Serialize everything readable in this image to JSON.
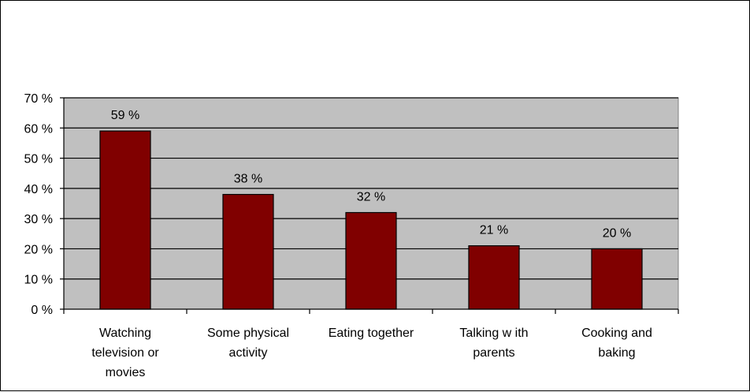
{
  "chart_data": {
    "type": "bar",
    "categories": [
      [
        "Watching",
        "television or",
        "movies"
      ],
      [
        "Some physical",
        "activity"
      ],
      [
        "Eating together"
      ],
      [
        "Talking w ith",
        "parents"
      ],
      [
        "Cooking and",
        "baking"
      ]
    ],
    "values": [
      59,
      38,
      32,
      21,
      20
    ],
    "value_labels": [
      "59 %",
      "38 %",
      "32 %",
      "21 %",
      "20 %"
    ],
    "y_ticks": [
      "0 %",
      "10 %",
      "20 %",
      "30 %",
      "40 %",
      "50 %",
      "60 %",
      "70 %"
    ],
    "ylim": [
      0,
      70
    ],
    "grid": true,
    "bar_color": "#800000",
    "plot_background": "#c0c0c0"
  }
}
